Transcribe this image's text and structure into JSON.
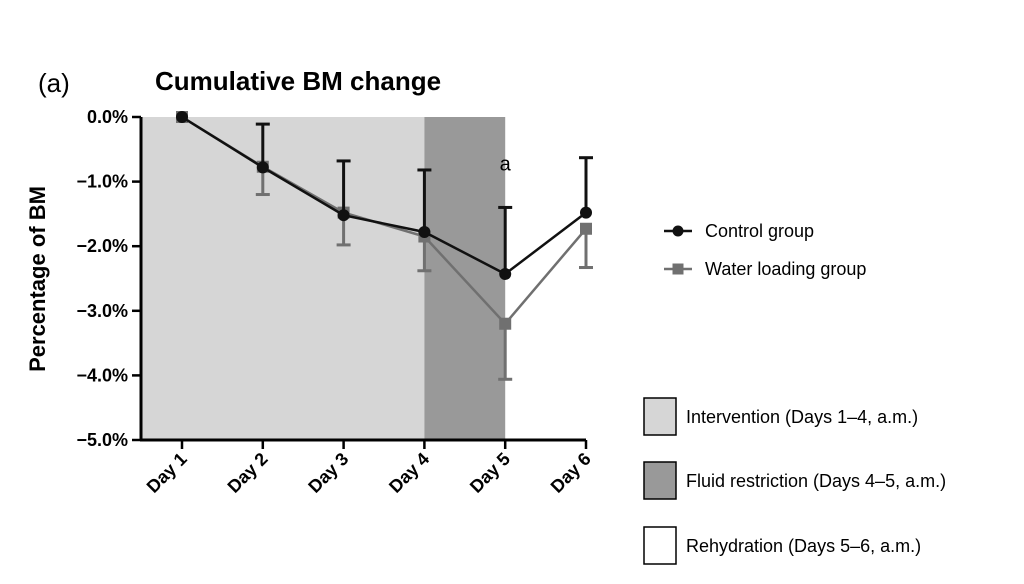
{
  "chart_data": {
    "type": "line",
    "panel_label": "(a)",
    "title": "Cumulative BM change",
    "xlabel": "",
    "ylabel": "Percentage of BM",
    "categories": [
      "Day 1",
      "Day 2",
      "Day 3",
      "Day 4",
      "Day 5",
      "Day 6"
    ],
    "ylim": [
      -5.0,
      0.0
    ],
    "yticks": [
      0,
      -1,
      -2,
      -3,
      -4,
      -5
    ],
    "ytick_labels": [
      "0.0%",
      "−1.0%",
      "−2.0%",
      "−3.0%",
      "−4.0%",
      "−5.0%"
    ],
    "grid": false,
    "legend_position": "right",
    "series": [
      {
        "name": "Control group",
        "marker": "circle",
        "color": "#111111",
        "values": [
          0.0,
          -0.78,
          -1.52,
          -1.78,
          -2.43,
          -1.48
        ],
        "error_upper": [
          0.0,
          0.67,
          0.84,
          0.96,
          1.03,
          0.85
        ],
        "error_lower": [
          0.0,
          0.0,
          0.0,
          0.0,
          0.0,
          0.0
        ]
      },
      {
        "name": "Water loading group",
        "marker": "square",
        "color": "#707070",
        "values": [
          0.0,
          -0.77,
          -1.48,
          -1.85,
          -3.2,
          -1.73
        ],
        "error_upper": [
          0.0,
          0.0,
          0.0,
          0.0,
          0.0,
          0.0
        ],
        "error_lower": [
          0.0,
          0.43,
          0.5,
          0.53,
          0.86,
          0.6
        ]
      }
    ],
    "regions": [
      {
        "label": "Intervention (Days 1–4, a.m.)",
        "from": "Day 1",
        "to": "Day 4",
        "color": "#d6d6d6"
      },
      {
        "label": "Fluid restriction (Days 4–5, a.m.)",
        "from": "Day 4",
        "to": "Day 5",
        "color": "#999999"
      },
      {
        "label": "Rehydration (Days 5–6, a.m.)",
        "from": "Day 5",
        "to": "Day 6",
        "color": "#ffffff"
      }
    ],
    "annotations": [
      {
        "text": "a",
        "category": "Day 5",
        "y": -0.72
      }
    ]
  }
}
